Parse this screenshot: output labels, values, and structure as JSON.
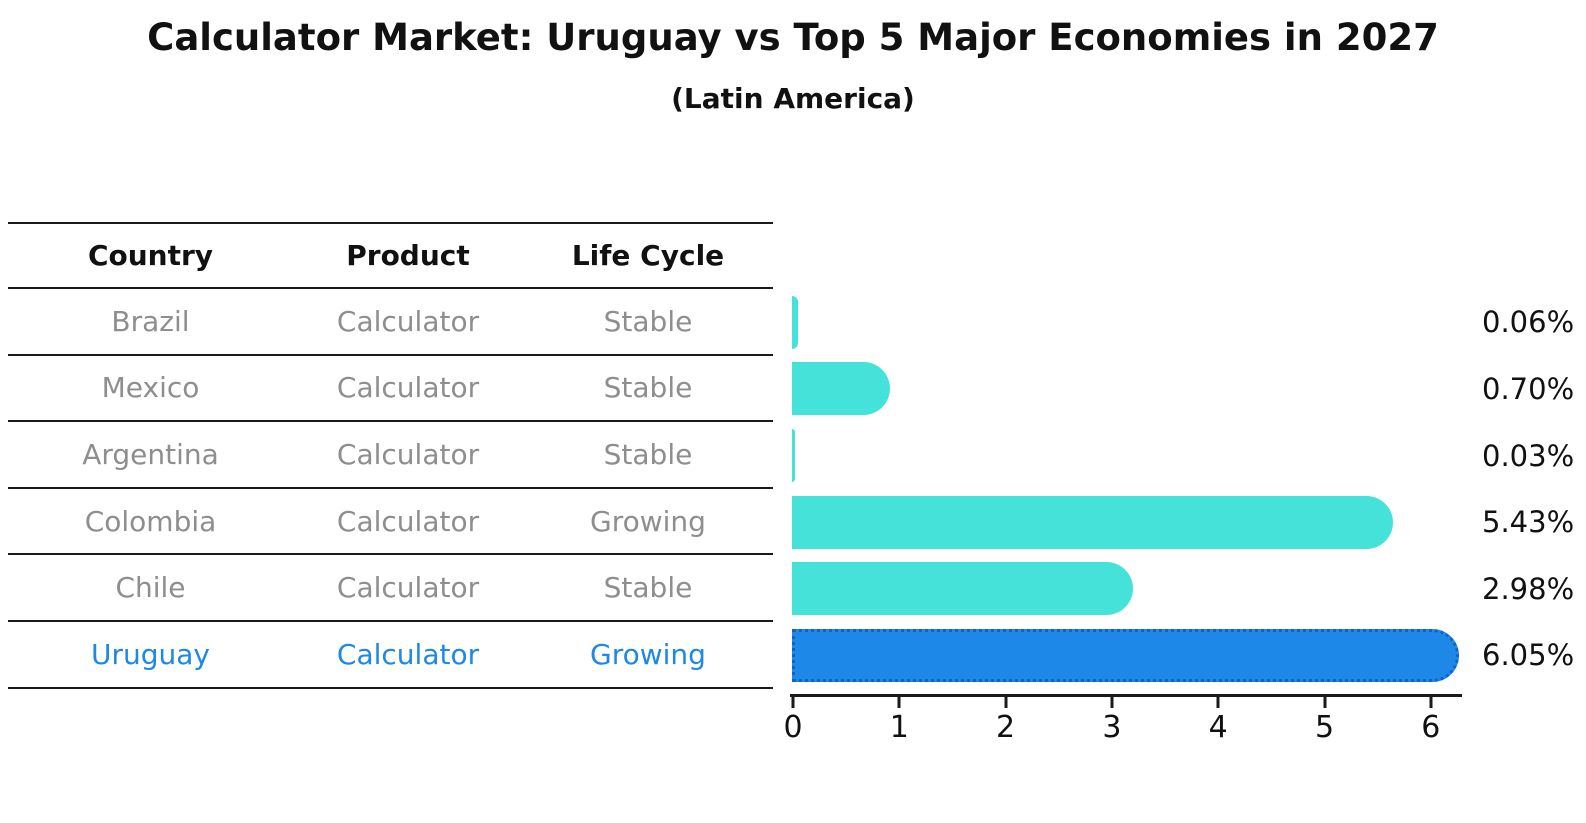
{
  "title": "Calculator Market: Uruguay vs Top 5 Major Economies in 2027",
  "subtitle": "(Latin America)",
  "table": {
    "headers": [
      "Country",
      "Product",
      "Life Cycle"
    ],
    "rows": [
      {
        "country": "Brazil",
        "product": "Calculator",
        "life_cycle": "Stable",
        "highlight": false
      },
      {
        "country": "Mexico",
        "product": "Calculator",
        "life_cycle": "Stable",
        "highlight": false
      },
      {
        "country": "Argentina",
        "product": "Calculator",
        "life_cycle": "Stable",
        "highlight": false
      },
      {
        "country": "Colombia",
        "product": "Calculator",
        "life_cycle": "Growing",
        "highlight": false
      },
      {
        "country": "Chile",
        "product": "Calculator",
        "life_cycle": "Stable",
        "highlight": false
      },
      {
        "country": "Uruguay",
        "product": "Calculator",
        "life_cycle": "Growing",
        "highlight": true
      }
    ]
  },
  "chart_data": {
    "type": "bar",
    "orientation": "horizontal",
    "title": "Calculator Market: Uruguay vs Top 5 Major Economies in 2027",
    "subtitle": "(Latin America)",
    "categories": [
      "Brazil",
      "Mexico",
      "Argentina",
      "Colombia",
      "Chile",
      "Uruguay"
    ],
    "values": [
      0.06,
      0.7,
      0.03,
      5.43,
      2.98,
      6.05
    ],
    "value_labels": [
      "0.06%",
      "0.70%",
      "0.03%",
      "5.43%",
      "2.98%",
      "6.05%"
    ],
    "x_ticks": [
      "0",
      "1",
      "2",
      "3",
      "4",
      "5",
      "6"
    ],
    "xlim": [
      0,
      6.3
    ],
    "grid": "off",
    "legend": "none",
    "bar_color": "#45e2d9",
    "highlight_color": "#1e88e8",
    "highlight_border_color": "#1062c8",
    "highlight_index": 5,
    "text_color": "#111111",
    "muted_text_color": "#8e8e8e",
    "highlight_text_color": "#1e88e5"
  }
}
